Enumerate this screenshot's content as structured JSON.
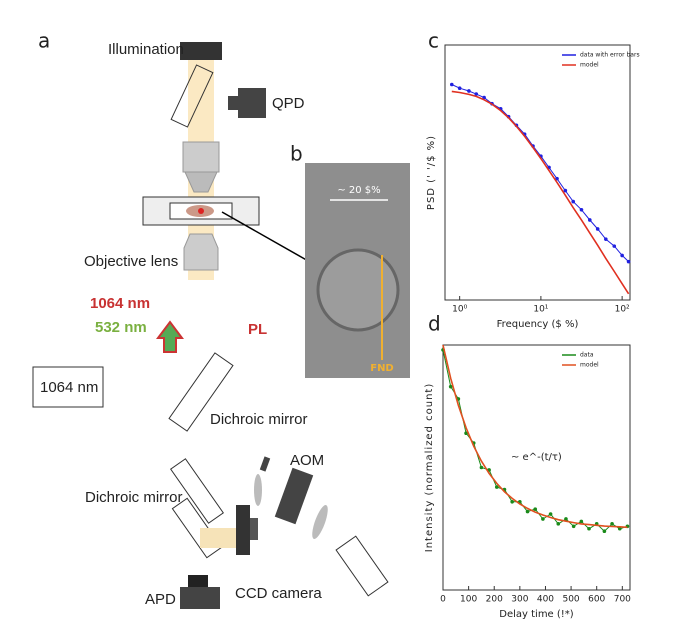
{
  "panels": {
    "a": "a",
    "b": "b",
    "c": "c",
    "d": "d"
  },
  "diagram": {
    "illumination": "Illumination",
    "qpd": "QPD",
    "objective": "Objective lens",
    "ir": "1064 nm",
    "green": "532 nm",
    "pl": "PL",
    "laser": "1064 nm",
    "dichroic1": "Dichroic mirror",
    "dichroic2": "Dichroic mirror",
    "aom": "AOM",
    "ccd": "CCD camera",
    "apd": "APD",
    "scale": "~ 20 $%",
    "fnd": "FND"
  },
  "chart_data": [
    {
      "type": "line",
      "xlabel": "Frequency ($ %)",
      "ylabel": "PSD (' '/$ %)",
      "xscale": "log",
      "yscale": "log",
      "x": [
        0.8,
        1,
        1.3,
        1.6,
        2,
        2.5,
        3.2,
        4,
        5,
        6.3,
        8,
        10,
        12.6,
        15.8,
        20,
        25,
        31.6,
        40,
        50,
        63,
        80,
        100,
        120
      ],
      "xlim": [
        0.66,
        125
      ],
      "ylim": [
        0.0001,
        1
      ],
      "xticks": [
        {
          "value": 1,
          "label": "10⁰"
        },
        {
          "value": 10,
          "label": "10¹"
        },
        {
          "value": 100,
          "label": "10²"
        }
      ],
      "legend": "upper right",
      "series": [
        {
          "name": "data with error bars",
          "color": "#2020e0",
          "markers": true,
          "values": [
            0.24,
            0.21,
            0.19,
            0.17,
            0.15,
            0.12,
            0.1,
            0.075,
            0.055,
            0.04,
            0.026,
            0.018,
            0.012,
            0.008,
            0.0052,
            0.0035,
            0.0026,
            0.0018,
            0.0013,
            0.0009,
            0.0007,
            0.0005,
            0.0004
          ]
        },
        {
          "name": "model",
          "color": "#e03020",
          "markers": false,
          "values": [
            0.187,
            0.18,
            0.168,
            0.156,
            0.138,
            0.118,
            0.0935,
            0.072,
            0.053,
            0.037,
            0.0247,
            0.0165,
            0.0107,
            0.007,
            0.0044,
            0.0028,
            0.00179,
            0.00112,
            0.00072,
            0.00045,
            0.00028,
            0.00018,
            0.000125
          ]
        }
      ]
    },
    {
      "type": "line",
      "xlabel": "Delay time (!*)",
      "ylabel": "Intensity (normalized count)",
      "annotation": "~ e^-(t/τ)",
      "x": [
        0,
        30,
        60,
        90,
        120,
        150,
        180,
        210,
        240,
        270,
        300,
        330,
        360,
        390,
        420,
        450,
        480,
        510,
        540,
        570,
        600,
        630,
        660,
        690,
        720
      ],
      "xlim": [
        0,
        730
      ],
      "ylim": [
        0,
        1
      ],
      "xticks": [
        0,
        100,
        200,
        300,
        400,
        500,
        600,
        700
      ],
      "legend": "upper right",
      "series": [
        {
          "name": "data",
          "color": "#1a8a1a",
          "markers": true,
          "values": [
            0.98,
            0.83,
            0.78,
            0.64,
            0.6,
            0.5,
            0.49,
            0.42,
            0.41,
            0.36,
            0.36,
            0.32,
            0.33,
            0.29,
            0.31,
            0.27,
            0.29,
            0.26,
            0.28,
            0.25,
            0.27,
            0.24,
            0.27,
            0.25,
            0.26
          ]
        },
        {
          "name": "model",
          "color": "#e05020",
          "markers": false,
          "values": [
            1.0,
            0.864,
            0.753,
            0.662,
            0.587,
            0.526,
            0.476,
            0.435,
            0.401,
            0.374,
            0.351,
            0.333,
            0.318,
            0.306,
            0.296,
            0.287,
            0.281,
            0.275,
            0.27,
            0.267,
            0.264,
            0.261,
            0.259,
            0.258,
            0.256
          ]
        }
      ]
    }
  ]
}
